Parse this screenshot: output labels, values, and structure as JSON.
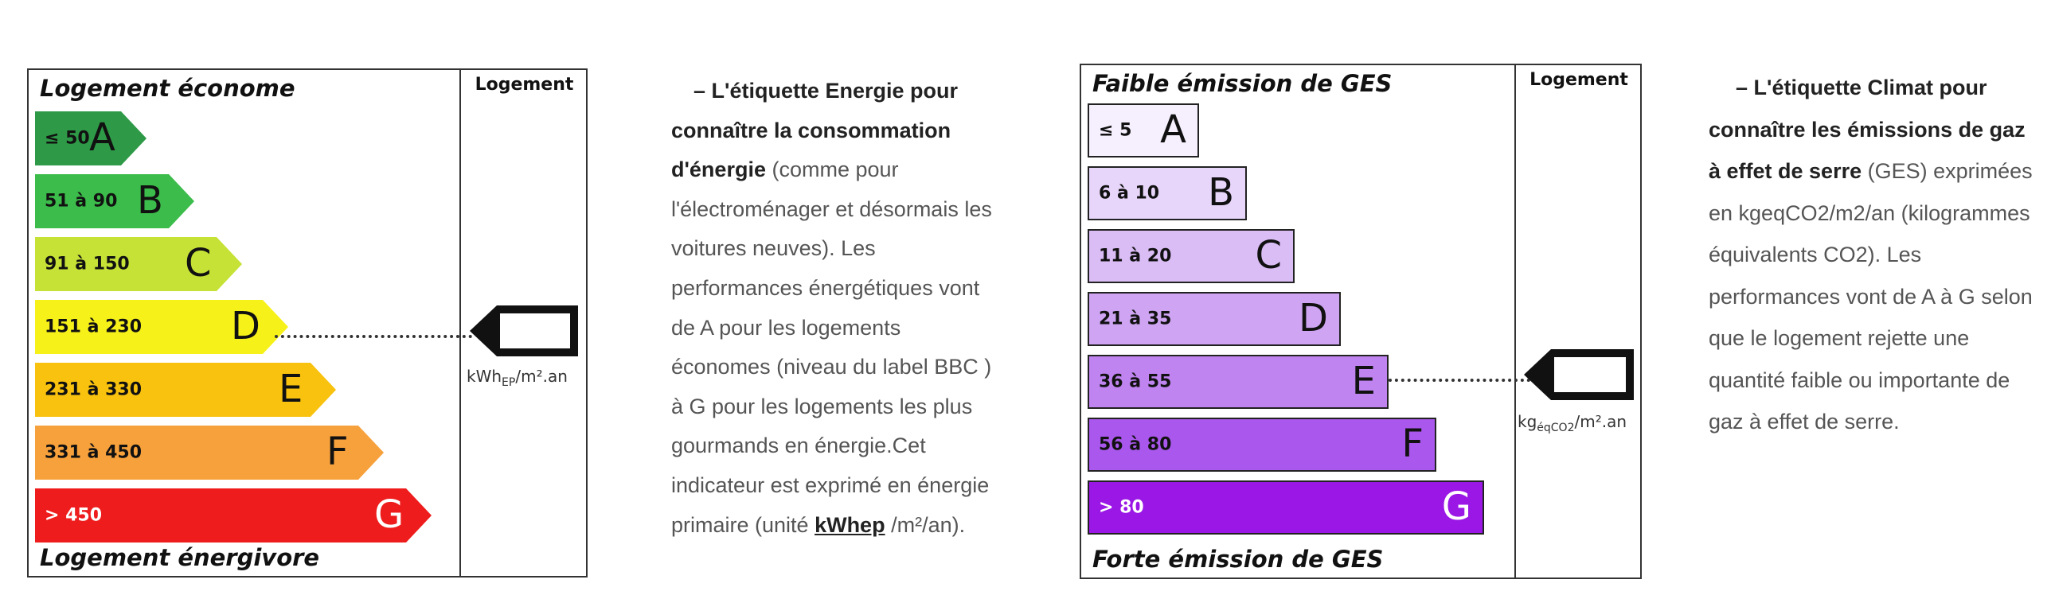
{
  "energy_label": {
    "top_label": "Logement économe",
    "bottom_label": "Logement énergivore",
    "column_header": "Logement",
    "unit_main": "kWh",
    "unit_sub": "EP",
    "unit_tail": "/m².an",
    "classes": [
      {
        "range": "≤ 50",
        "letter": "A",
        "color": "#2e9a47"
      },
      {
        "range": "51 à 90",
        "letter": "B",
        "color": "#3cbc4b"
      },
      {
        "range": "91 à 150",
        "letter": "C",
        "color": "#c6e236"
      },
      {
        "range": "151 à 230",
        "letter": "D",
        "color": "#f7f11a"
      },
      {
        "range": "231 à 330",
        "letter": "E",
        "color": "#f8c20e"
      },
      {
        "range": "331 à 450",
        "letter": "F",
        "color": "#f7a13c"
      },
      {
        "range": "> 450",
        "letter": "G",
        "color": "#ee1c1c"
      }
    ],
    "indicated_class": "D"
  },
  "energy_text": {
    "dash": "– ",
    "bold": "L'étiquette Energie pour connaître la consommation d'énergie",
    "body": " (comme pour l'électroménager et désormais les voitures neuves). Les performances énergétiques vont de A pour les logements économes (niveau du label BBC ) à G pour les logements les plus gourmands en énergie.Cet indicateur est exprimé en énergie primaire (unité ",
    "unit_link": "kWhep",
    "tail": " /m²/an)."
  },
  "climate_label": {
    "top_label": "Faible émission de GES",
    "bottom_label": "Forte émission de GES",
    "column_header": "Logement",
    "unit_main": "kg",
    "unit_sub": "éqCO2",
    "unit_tail": "/m².an",
    "classes": [
      {
        "range": "≤ 5",
        "letter": "A",
        "color": "#f6effd"
      },
      {
        "range": "6 à 10",
        "letter": "B",
        "color": "#e7d6fa"
      },
      {
        "range": "11 à 20",
        "letter": "C",
        "color": "#dbbdf6"
      },
      {
        "range": "21 à 35",
        "letter": "D",
        "color": "#cfa5f3"
      },
      {
        "range": "36 à 55",
        "letter": "E",
        "color": "#bf84f0"
      },
      {
        "range": "56 à 80",
        "letter": "F",
        "color": "#a957ec"
      },
      {
        "range": "> 80",
        "letter": "G",
        "color": "#9a17e6"
      }
    ],
    "indicated_class": "E"
  },
  "climate_text": {
    "dash": "– ",
    "bold": "L'étiquette Climat pour connaître les émissions de gaz à effet de serre",
    "body": " (GES) exprimées en kgeqCO2/m2/an (kilogrammes équivalents CO2). Les performances vont de A à G selon que le logement rejette une quantité faible ou importante de gaz à effet de serre."
  }
}
